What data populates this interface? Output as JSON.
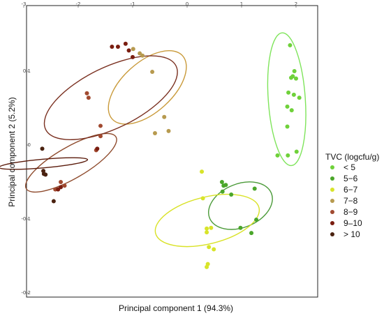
{
  "chart_data": {
    "type": "scatter",
    "title": "",
    "xlabel": "Principal component 1 (94.3%)",
    "ylabel": "Principal component 2 (5.2%)",
    "xlim": [
      -3,
      2.6
    ],
    "ylim": [
      -0.22,
      0.17
    ],
    "x_ticks": [
      "-3",
      "-2",
      "-1",
      "0",
      "1",
      "2"
    ],
    "y_ticks": [
      "0.1",
      "0",
      "-0.1",
      "-0.2"
    ],
    "x_tick_values": [
      -3,
      -2,
      -1,
      0,
      1,
      2
    ],
    "y_tick_values": [
      0.1,
      0,
      -0.1,
      -0.2
    ],
    "grid": false,
    "legend_title": "TVC (logcfu/g)",
    "legend_position": "right",
    "series": [
      {
        "name": "< 5",
        "color": "#6fd13a",
        "points": [
          [
            1.89,
            0.135
          ],
          [
            1.91,
            0.091
          ],
          [
            1.94,
            0.093
          ],
          [
            1.97,
            0.1
          ],
          [
            2.0,
            0.09
          ],
          [
            1.86,
            0.071
          ],
          [
            1.96,
            0.068
          ],
          [
            2.06,
            0.064
          ],
          [
            1.84,
            0.052
          ],
          [
            1.92,
            0.047
          ],
          [
            1.84,
            0.025
          ],
          [
            1.66,
            -0.014
          ],
          [
            1.85,
            -0.014
          ],
          [
            2.01,
            -0.009
          ]
        ]
      },
      {
        "name": "5−6",
        "color": "#4aa62a",
        "points": [
          [
            0.64,
            -0.05
          ],
          [
            0.67,
            -0.055
          ],
          [
            0.71,
            -0.054
          ],
          [
            0.65,
            -0.063
          ],
          [
            0.81,
            -0.067
          ],
          [
            1.24,
            -0.059
          ],
          [
            1.27,
            -0.101
          ],
          [
            0.98,
            -0.112
          ],
          [
            1.18,
            -0.119
          ]
        ]
      },
      {
        "name": "6−7",
        "color": "#d8e42a",
        "points": [
          [
            0.27,
            -0.036
          ],
          [
            0.29,
            -0.072
          ],
          [
            0.36,
            -0.113
          ],
          [
            0.36,
            -0.118
          ],
          [
            0.44,
            -0.112
          ],
          [
            0.49,
            -0.141
          ],
          [
            0.4,
            -0.138
          ],
          [
            0.38,
            -0.161
          ],
          [
            0.36,
            -0.165
          ]
        ]
      },
      {
        "name": "7−8",
        "color": "#b79a4f",
        "points": [
          [
            -0.99,
            0.13
          ],
          [
            -0.87,
            0.124
          ],
          [
            -0.82,
            0.121
          ],
          [
            -0.64,
            0.099
          ],
          [
            -0.42,
            0.038
          ],
          [
            -0.59,
            0.016
          ],
          [
            -0.34,
            0.019
          ]
        ]
      },
      {
        "name": "8−9",
        "color": "#a14a30",
        "points": [
          [
            -1.84,
            0.07
          ],
          [
            -1.81,
            0.064
          ],
          [
            -1.59,
            0.026
          ],
          [
            -1.59,
            0.012
          ],
          [
            -1.67,
            -0.007
          ],
          [
            -2.32,
            -0.05
          ],
          [
            -2.25,
            -0.055
          ],
          [
            -2.42,
            -0.06
          ]
        ]
      },
      {
        "name": "9–10",
        "color": "#7a1d10",
        "points": [
          [
            -1.38,
            0.133
          ],
          [
            -1.27,
            0.133
          ],
          [
            -1.13,
            0.137
          ],
          [
            -1.07,
            0.128
          ],
          [
            -1.0,
            0.119
          ],
          [
            -2.32,
            -0.057
          ],
          [
            -2.37,
            -0.06
          ],
          [
            -1.65,
            -0.005
          ]
        ]
      },
      {
        "name": "> 10",
        "color": "#4a2210",
        "points": [
          [
            -2.66,
            -0.005
          ],
          [
            -2.64,
            -0.035
          ],
          [
            -2.63,
            -0.039
          ],
          [
            -2.6,
            -0.04
          ],
          [
            -2.45,
            -0.076
          ]
        ]
      }
    ],
    "ellipses": [
      {
        "series": "< 5",
        "color": "#7ee45a",
        "center": [
          1.83,
          0.062
        ],
        "radii": [
          0.34,
          0.09
        ],
        "rotation_deg": -4
      },
      {
        "series": "5−6",
        "color": "#4a9a38",
        "center": [
          0.98,
          -0.082
        ],
        "radii": [
          0.4,
          0.045
        ],
        "rotation_deg": -112
      },
      {
        "series": "6−7",
        "color": "#d9e227",
        "center": [
          0.37,
          -0.102
        ],
        "radii": [
          0.43,
          0.072
        ],
        "rotation_deg": -104
      },
      {
        "series": "7−8",
        "color": "#c99a3a",
        "center": [
          -0.73,
          0.078
        ],
        "radii": [
          0.46,
          0.064
        ],
        "rotation_deg": -132
      },
      {
        "series": "8−9",
        "color": "#8e4a2c",
        "center": [
          -2.13,
          -0.024
        ],
        "radii": [
          0.29,
          0.07
        ],
        "rotation_deg": -120
      },
      {
        "series": "9–10",
        "color": "#7a3020",
        "center": [
          -1.4,
          0.064
        ],
        "radii": [
          0.56,
          0.098
        ],
        "rotation_deg": -116
      },
      {
        "series": "> 10",
        "color": "#5a1a0a",
        "center": [
          -2.64,
          -0.025
        ],
        "radii": [
          0.08,
          0.06
        ],
        "rotation_deg": -95
      }
    ]
  }
}
